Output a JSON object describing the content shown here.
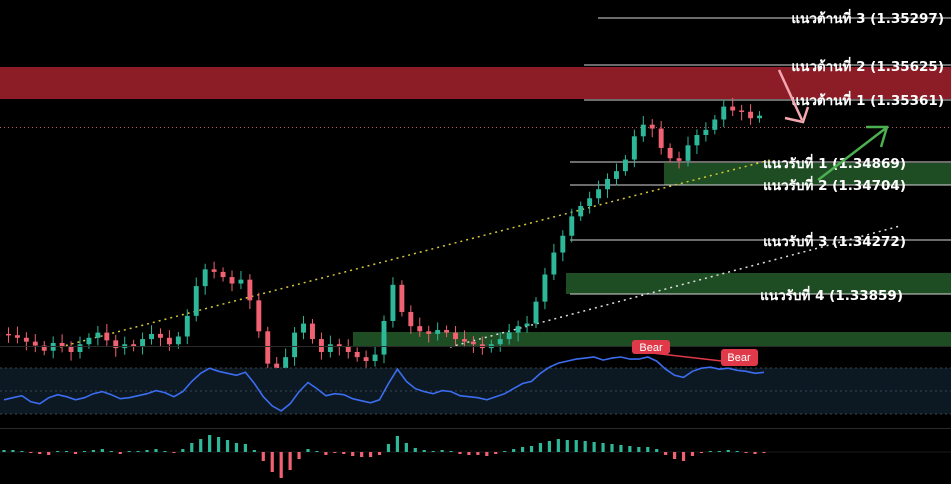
{
  "chart_data": {
    "type": "line",
    "panels": [
      "price-candles",
      "oscillator",
      "histogram"
    ],
    "levels": [
      {
        "label": "แนวต้านที่ 3 (1.35297)",
        "kind": "resistance",
        "value": 1.35297
      },
      {
        "label": "แนวต้านที่ 2 (1.35625)",
        "kind": "resistance",
        "value": 1.35625
      },
      {
        "label": "แนวต้านที่ 1 (1.35361)",
        "kind": "resistance",
        "value": 1.35361
      },
      {
        "label": "แนวรับที่ 1 (1.34869)",
        "kind": "support",
        "value": 1.34869
      },
      {
        "label": "แนวรับที่ 2 (1.34704)",
        "kind": "support",
        "value": 1.34704
      },
      {
        "label": "แนวรับที่ 3 (1.34272)",
        "kind": "support",
        "value": 1.34272
      },
      {
        "label": "แนวรับที่ 4 (1.33859)",
        "kind": "support",
        "value": 1.33859
      }
    ],
    "zones": [
      {
        "kind": "resistance",
        "color": "#8c1d26"
      },
      {
        "kind": "support",
        "color": "#1e4d24"
      }
    ],
    "divergence_labels": [
      "Bear",
      "Bear"
    ],
    "arrows": [
      {
        "direction": "down",
        "color": "#f4a7b0"
      },
      {
        "direction": "up",
        "color": "#4caf50"
      }
    ],
    "price_series": [
      1.3355,
      1.3354,
      1.3352,
      1.3349,
      1.3346,
      1.3342,
      1.3348,
      1.3345,
      1.3341,
      1.3347,
      1.3352,
      1.3356,
      1.335,
      1.3344,
      1.3347,
      1.3345,
      1.3351,
      1.3355,
      1.3352,
      1.3347,
      1.3353,
      1.3369,
      1.3392,
      1.3405,
      1.3403,
      1.3399,
      1.3394,
      1.3397,
      1.3381,
      1.3357,
      1.3332,
      1.3322,
      1.3337,
      1.3356,
      1.3363,
      1.3351,
      1.3341,
      1.3347,
      1.3345,
      1.3341,
      1.3337,
      1.3334,
      1.3339,
      1.3365,
      1.3393,
      1.3372,
      1.3361,
      1.3357,
      1.3355,
      1.3358,
      1.3356,
      1.3351,
      1.3349,
      1.3347,
      1.3344,
      1.3347,
      1.3351,
      1.3356,
      1.3361,
      1.3363,
      1.338,
      1.3401,
      1.3418,
      1.3431,
      1.3446,
      1.3454,
      1.346,
      1.3467,
      1.3475,
      1.3481,
      1.349,
      1.3508,
      1.3517,
      1.3514,
      1.3499,
      1.3491,
      1.3489,
      1.3501,
      1.3509,
      1.3513,
      1.3521,
      1.3531,
      1.3528,
      1.3527,
      1.3522,
      1.3524
    ],
    "oscillator": {
      "color": "#3b6df0",
      "values": [
        44,
        46,
        48,
        42,
        40,
        46,
        49,
        47,
        44,
        46,
        50,
        52,
        49,
        45,
        46,
        48,
        50,
        53,
        51,
        47,
        52,
        62,
        70,
        75,
        72,
        70,
        68,
        71,
        60,
        47,
        38,
        33,
        40,
        52,
        61,
        55,
        48,
        50,
        49,
        45,
        43,
        41,
        44,
        60,
        74,
        62,
        55,
        52,
        50,
        53,
        52,
        48,
        47,
        46,
        44,
        47,
        50,
        55,
        60,
        62,
        70,
        76,
        80,
        82,
        84,
        85,
        86,
        83,
        85,
        86,
        84,
        84,
        86,
        82,
        74,
        68,
        66,
        72,
        75,
        76,
        74,
        75,
        73,
        72,
        70,
        71
      ]
    },
    "histogram": {
      "positive_color": "#2eb89a",
      "negative_color": "#f06272",
      "values": [
        0.2,
        0.2,
        0.1,
        -0.1,
        -0.2,
        -0.3,
        0.0,
        0.1,
        -0.2,
        0.1,
        0.2,
        0.3,
        0.1,
        -0.2,
        0.0,
        0.1,
        0.2,
        0.3,
        0.1,
        -0.1,
        0.3,
        0.9,
        1.3,
        1.7,
        1.5,
        1.2,
        0.9,
        0.8,
        0.2,
        -0.9,
        -2.0,
        -2.6,
        -1.8,
        -0.7,
        0.3,
        0.1,
        -0.3,
        -0.1,
        -0.2,
        -0.4,
        -0.5,
        -0.5,
        -0.3,
        0.8,
        1.6,
        0.9,
        0.4,
        0.2,
        0.1,
        0.2,
        0.1,
        -0.2,
        -0.3,
        -0.3,
        -0.4,
        -0.2,
        0.0,
        0.3,
        0.5,
        0.6,
        0.9,
        1.1,
        1.3,
        1.2,
        1.2,
        1.1,
        1.0,
        0.9,
        0.8,
        0.7,
        0.6,
        0.5,
        0.5,
        0.3,
        -0.3,
        -0.7,
        -0.9,
        -0.4,
        -0.1,
        0.1,
        0.1,
        0.2,
        0.0,
        -0.1,
        -0.2,
        -0.1
      ]
    }
  }
}
